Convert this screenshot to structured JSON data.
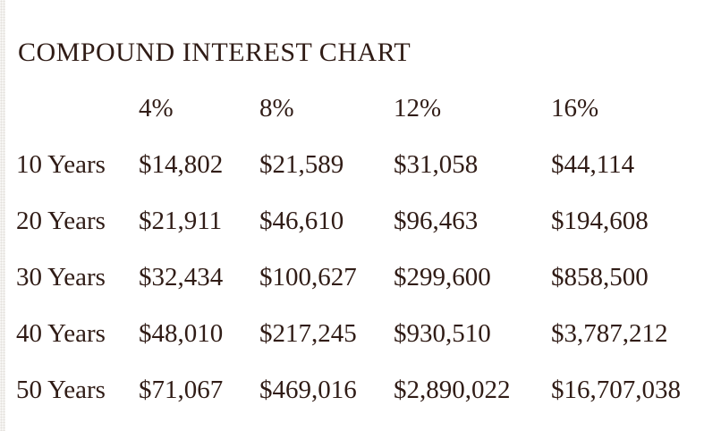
{
  "title": "COMPOUND INTEREST CHART",
  "table": {
    "columns": [
      "",
      "4%",
      "8%",
      "12%",
      "16%"
    ],
    "rows": [
      {
        "label": "10 Years",
        "values": [
          "$14,802",
          "$21,589",
          "$31,058",
          "$44,114"
        ]
      },
      {
        "label": "20 Years",
        "values": [
          "$21,911",
          "$46,610",
          "$96,463",
          "$194,608"
        ]
      },
      {
        "label": "30 Years",
        "values": [
          "$32,434",
          "$100,627",
          "$299,600",
          "$858,500"
        ]
      },
      {
        "label": "40 Years",
        "values": [
          "$48,010",
          "$217,245",
          "$930,510",
          "$3,787,212"
        ]
      },
      {
        "label": "50 Years",
        "values": [
          "$71,067",
          "$469,016",
          "$2,890,022",
          "$16,707,038"
        ]
      }
    ]
  },
  "chart_data": {
    "type": "table",
    "title": "COMPOUND INTEREST CHART",
    "columns": [
      "4%",
      "8%",
      "12%",
      "16%"
    ],
    "row_labels": [
      "10 Years",
      "20 Years",
      "30 Years",
      "40 Years",
      "50 Years"
    ],
    "values": [
      [
        14802,
        21589,
        31058,
        44114
      ],
      [
        21911,
        46610,
        96463,
        194608
      ],
      [
        32434,
        100627,
        299600,
        858500
      ],
      [
        48010,
        217245,
        930510,
        3787212
      ],
      [
        71067,
        469016,
        2890022,
        16707038
      ]
    ],
    "units": "USD",
    "notes_visible": "",
    "layout": "row labels = investment duration, column headers = annual interest rate"
  },
  "colors": {
    "text": "#301c16",
    "background": "#ffffff",
    "edge_strip": "#f7f6f4"
  }
}
